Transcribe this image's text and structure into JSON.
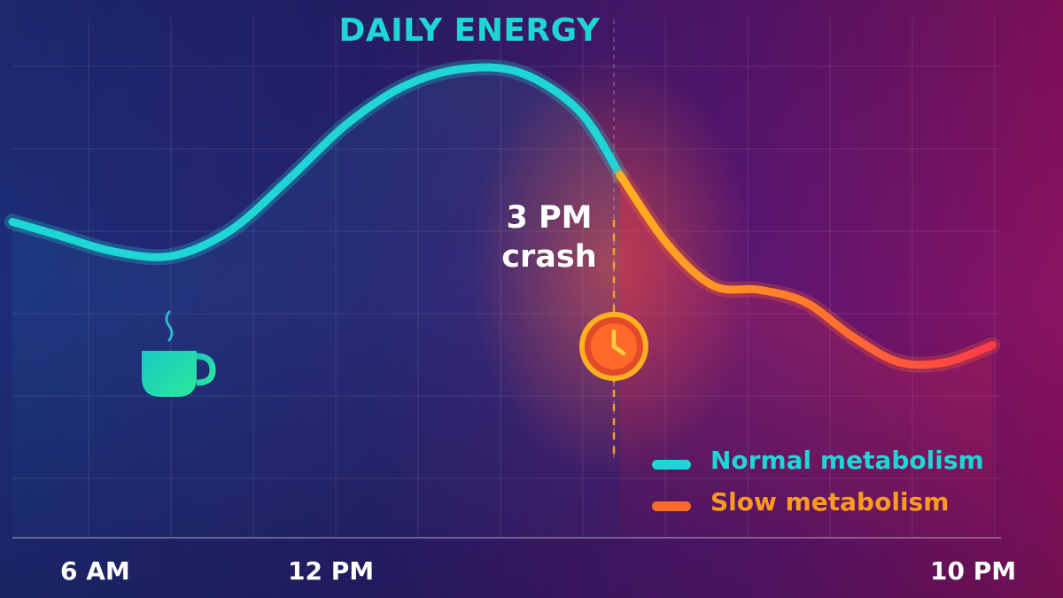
{
  "chart_data": {
    "type": "line",
    "title": "DAILY ENERGY",
    "x_tick_labels": [
      "6 AM",
      "12 PM",
      "10 PM"
    ],
    "x_tick_hours": [
      6,
      12,
      22
    ],
    "xlim": [
      5.75,
      22.75
    ],
    "xlabel": "",
    "ylabel": "",
    "ylim": [
      0,
      1
    ],
    "grid": true,
    "legend_position": "bottom-right",
    "series": [
      {
        "name": "Normal metabolism",
        "color": "#1fd6d6",
        "x": [
          5.75,
          6.5,
          7.5,
          8.5,
          9.5,
          10.5,
          11.5,
          12.5,
          13.5,
          14.5,
          15.5,
          16.2
        ],
        "y": [
          0.62,
          0.59,
          0.55,
          0.54,
          0.6,
          0.72,
          0.85,
          0.94,
          0.98,
          0.97,
          0.88,
          0.73
        ]
      },
      {
        "name": "Slow metabolism",
        "color": "#ff7a2a",
        "x": [
          16.2,
          17.0,
          17.8,
          18.6,
          19.4,
          20.2,
          21.0,
          21.8,
          22.6
        ],
        "y": [
          0.73,
          0.57,
          0.47,
          0.46,
          0.43,
          0.35,
          0.29,
          0.29,
          0.33
        ]
      }
    ],
    "annotations": [
      {
        "text_line1": "3 PM",
        "text_line2": "crash",
        "x": 16.2
      }
    ]
  },
  "icons": {
    "coffee": "coffee-cup-icon",
    "clock": "clock-icon"
  },
  "colors": {
    "background_left": "#1e2a78",
    "background_right": "#8a1262",
    "normal": "#1fd6d6",
    "slow": "#ff7a2a",
    "slow_end": "#ff3a4a",
    "clock": "#ffb020"
  }
}
